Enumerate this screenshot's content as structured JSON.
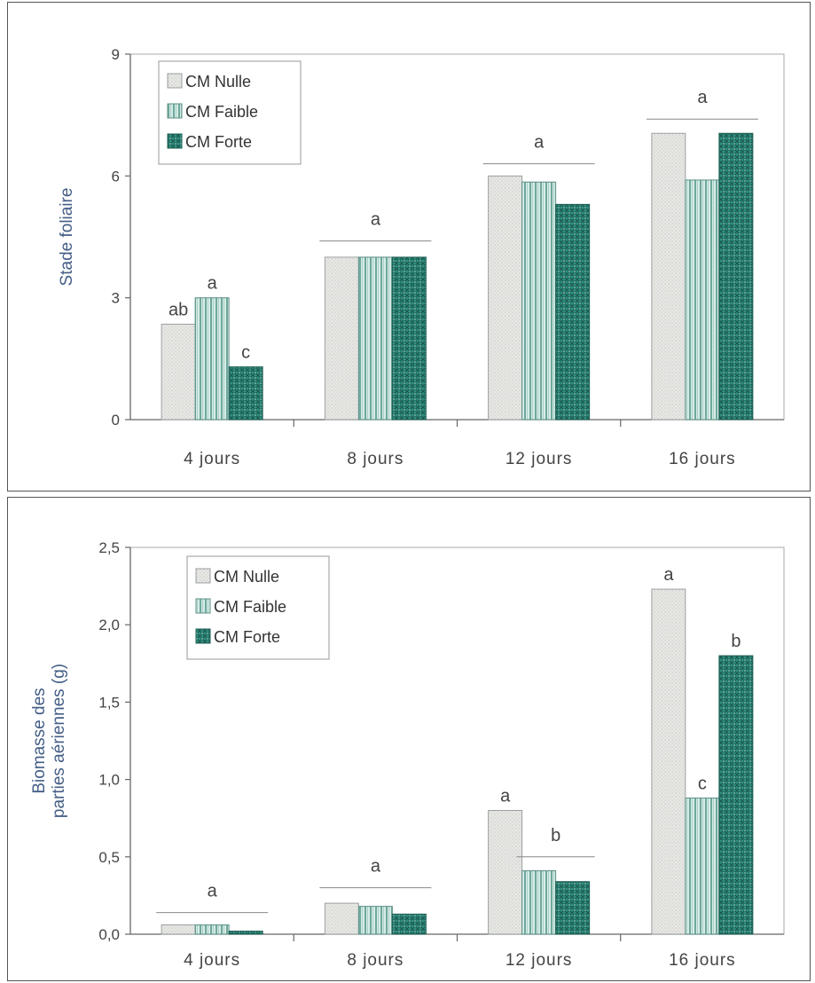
{
  "chart_data": [
    {
      "type": "bar",
      "ylabel": "Stade foliaire",
      "ylabel_lines": [
        "Stade foliaire"
      ],
      "ylim": [
        0,
        9
      ],
      "yticks": [
        "0",
        "3",
        "6",
        "9"
      ],
      "ytick_values": [
        0,
        3,
        6,
        9
      ],
      "categories": [
        "4 jours",
        "8 jours",
        "12 jours",
        "16 jours"
      ],
      "series": [
        {
          "name": "CM Nulle",
          "values": [
            2.35,
            4.0,
            6.0,
            7.05
          ]
        },
        {
          "name": "CM Faible",
          "values": [
            3.0,
            4.0,
            5.85,
            5.9
          ]
        },
        {
          "name": "CM Forte",
          "values": [
            1.3,
            4.0,
            5.3,
            7.05
          ]
        }
      ],
      "significance_letters": [
        {
          "category": 0,
          "series": 0,
          "text": "ab"
        },
        {
          "category": 0,
          "series": 1,
          "text": "a"
        },
        {
          "category": 0,
          "series": 2,
          "text": "c"
        },
        {
          "category": 1,
          "group": true,
          "text": "a",
          "line_value": 4.4
        },
        {
          "category": 2,
          "group": true,
          "text": "a",
          "line_value": 6.3
        },
        {
          "category": 3,
          "group": true,
          "text": "a",
          "line_value": 7.4
        }
      ],
      "legend_position": "top-left",
      "grid": false
    },
    {
      "type": "bar",
      "ylabel": "Biomasse des parties aériennes (g)",
      "ylabel_lines": [
        "Biomasse des",
        "parties aériennes (g)"
      ],
      "ylim": [
        0,
        2.5
      ],
      "yticks": [
        "0,0",
        "0,5",
        "1,0",
        "1,5",
        "2,0",
        "2,5"
      ],
      "ytick_values": [
        0,
        0.5,
        1.0,
        1.5,
        2.0,
        2.5
      ],
      "categories": [
        "4 jours",
        "8 jours",
        "12 jours",
        "16 jours"
      ],
      "series": [
        {
          "name": "CM Nulle",
          "values": [
            0.06,
            0.2,
            0.8,
            2.23
          ]
        },
        {
          "name": "CM Faible",
          "values": [
            0.06,
            0.18,
            0.41,
            0.88
          ]
        },
        {
          "name": "CM Forte",
          "values": [
            0.02,
            0.13,
            0.34,
            1.8
          ]
        }
      ],
      "significance_letters": [
        {
          "category": 0,
          "group": true,
          "text": "a",
          "line_value": 0.14
        },
        {
          "category": 1,
          "group": true,
          "text": "a",
          "line_value": 0.3
        },
        {
          "category": 2,
          "series": 0,
          "text": "a"
        },
        {
          "category": 2,
          "subgroup": [
            1,
            2
          ],
          "text": "b",
          "line_value": 0.5
        },
        {
          "category": 3,
          "series": 0,
          "text": "a"
        },
        {
          "category": 3,
          "series": 1,
          "text": "c"
        },
        {
          "category": 3,
          "series": 2,
          "text": "b"
        }
      ],
      "legend_position": "top-left",
      "grid": false
    }
  ],
  "colors": {
    "series_fill": [
      "#e8e8e4",
      "#d6ece6",
      "#2f8f7f"
    ],
    "series_stroke": [
      "#9aa0a0",
      "#5d8f86",
      "#1f5f55"
    ],
    "axis": "#666666",
    "ylabel": "#445e86"
  }
}
